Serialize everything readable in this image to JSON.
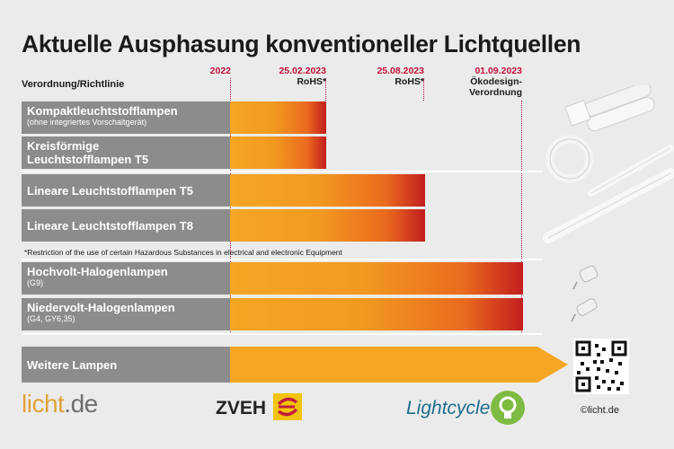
{
  "title": "Aktuelle Ausphasung konventioneller Lichtquellen",
  "header_label": "Verordnung/Richtlinie",
  "deadlines": [
    {
      "date": "2022",
      "sub": ""
    },
    {
      "date": "25.02.2023",
      "sub": "RoHS*"
    },
    {
      "date": "25.08.2023",
      "sub": "RoHS*"
    },
    {
      "date": "01.09.2023",
      "sub": "Ökodesign-Verordnung"
    }
  ],
  "rows": [
    {
      "label": "Kompaktleuchtstofflampen",
      "note": "(ohne integriertes Vorschaltgerät)",
      "phaseout": "25.02.2023"
    },
    {
      "label": "Kreisförmige Leuchtstofflampen T5",
      "note": "",
      "phaseout": "25.02.2023"
    },
    {
      "label": "Lineare Leuchtstofflampen T5",
      "note": "",
      "phaseout": "25.08.2023"
    },
    {
      "label": "Lineare Leuchtstofflampen T8",
      "note": "",
      "phaseout": "25.08.2023"
    },
    {
      "label": "Hochvolt-Halogenlampen",
      "note": "(G9)",
      "phaseout": "01.09.2023"
    },
    {
      "label": "Niedervolt-Halogenlampen",
      "note": "(G4, GY6,35)",
      "phaseout": "01.09.2023"
    },
    {
      "label": "Weitere Lampen",
      "note": "",
      "phaseout": ""
    }
  ],
  "footnote": "*Restriction of the use of certain Hazardous Substances in electrical and electronic Equipment",
  "logos": {
    "licht_main": "licht",
    "licht_suffix": ".de",
    "zveh": "ZVEH",
    "lightcycle": "Lightcycle"
  },
  "copyright": "©licht.de",
  "colors": {
    "bar_start": "#f5a623",
    "bar_end": "#c21e1e",
    "label_bg": "#8c8c8d",
    "deadline": "#c0123c"
  }
}
